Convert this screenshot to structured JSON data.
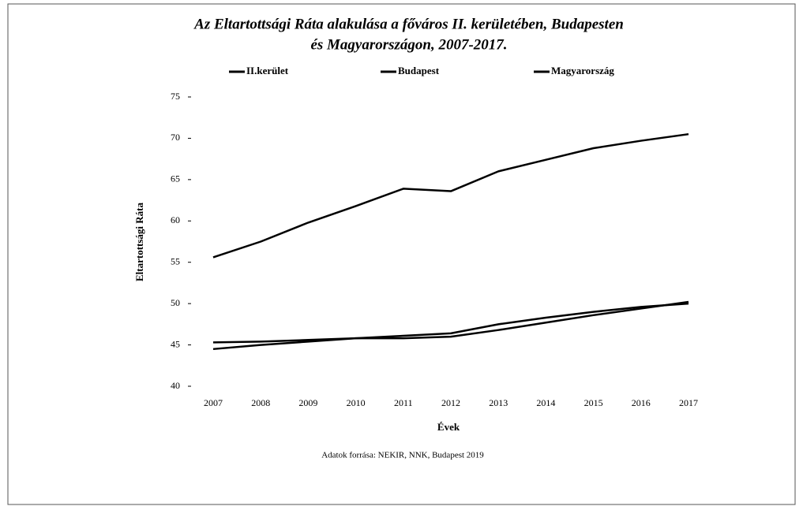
{
  "chart_data": {
    "type": "line",
    "title": [
      "Az Eltartottsági Ráta alakulása a főváros II. kerületében, Budapesten",
      "és Magyarországon, 2007-2017."
    ],
    "ylabel": "Eltartottsági Ráta",
    "xlabel": "Évek",
    "source": "Adatok forrása: NEKIR, NNK, Budapest 2019",
    "categories": [
      "2007",
      "2008",
      "2009",
      "2010",
      "2011",
      "2012",
      "2013",
      "2014",
      "2015",
      "2016",
      "2017"
    ],
    "series": [
      {
        "name": "II.kerület",
        "color": "#000000",
        "values": [
          55.6,
          57.5,
          59.8,
          61.8,
          63.9,
          63.6,
          66.0,
          67.4,
          68.8,
          69.7,
          70.5
        ]
      },
      {
        "name": "Budapest",
        "color": "#000000",
        "values": [
          44.5,
          45.0,
          45.4,
          45.8,
          45.8,
          46.0,
          46.8,
          47.7,
          48.6,
          49.4,
          50.2
        ]
      },
      {
        "name": "Magyarország",
        "color": "#000000",
        "values": [
          45.3,
          45.4,
          45.6,
          45.8,
          46.1,
          46.4,
          47.5,
          48.3,
          49.0,
          49.6,
          50.0
        ]
      }
    ],
    "ylim": [
      40,
      75
    ],
    "yticks": [
      40,
      45,
      50,
      55,
      60,
      65,
      70,
      75
    ],
    "grid": false,
    "legend": "top"
  }
}
